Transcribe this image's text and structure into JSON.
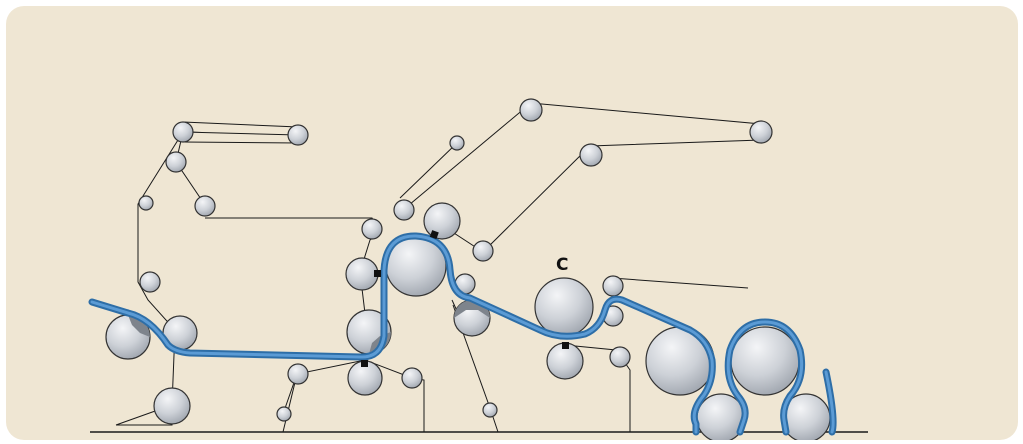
{
  "labels": {
    "roll_c": "C"
  },
  "colors": {
    "background": "#efe6d3",
    "web": "#2e6ea7",
    "web_core": "#5b9bd5",
    "roll_fill": "#c9cdd3",
    "roll_highlight": "#f2f3f5",
    "line": "#1a1a1a",
    "press_nip": "#111111"
  },
  "icons": {
    "roll": "roller-circle",
    "nip": "press-nip-square"
  }
}
